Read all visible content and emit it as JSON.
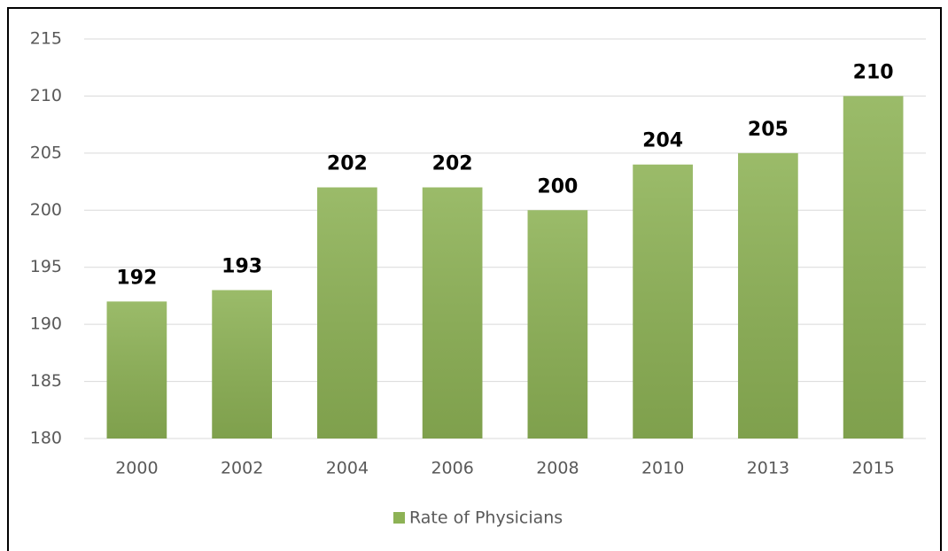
{
  "chart_data": {
    "type": "bar",
    "categories": [
      "2000",
      "2002",
      "2004",
      "2006",
      "2008",
      "2010",
      "2013",
      "2015"
    ],
    "series": [
      {
        "name": "Rate of Physicians",
        "color": "#8db255",
        "values": [
          192,
          193,
          202,
          202,
          200,
          204,
          205,
          210
        ]
      }
    ],
    "ylim": [
      180,
      215
    ],
    "yticks": [
      180,
      185,
      190,
      195,
      200,
      205,
      210,
      215
    ],
    "grid": true,
    "data_labels": true,
    "legend": "bottom"
  }
}
